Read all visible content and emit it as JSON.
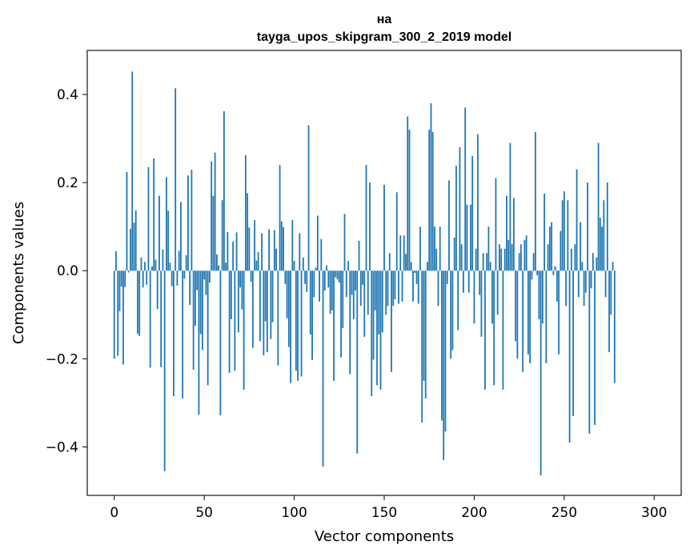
{
  "chart_data": {
    "type": "bar",
    "title_lines": [
      "на",
      "tayga_upos_skipgram_300_2_2019 model"
    ],
    "xlabel": "Vector components",
    "ylabel": "Components values",
    "xlim": [
      -15,
      315
    ],
    "ylim": [
      -0.51,
      0.5
    ],
    "xticks": [
      0,
      50,
      100,
      150,
      200,
      250,
      300
    ],
    "xtick_labels": [
      "0",
      "50",
      "100",
      "150",
      "200",
      "250",
      "300"
    ],
    "yticks": [
      0.4,
      0.2,
      0.0,
      -0.2,
      -0.4
    ],
    "ytick_labels": [
      "0.4",
      "0.2",
      "0.0",
      "−0.2",
      "−0.4"
    ],
    "grid": false,
    "bar_color": "#1f77b4",
    "x_start": 0,
    "values": [
      -0.2,
      0.044,
      -0.193,
      -0.092,
      -0.036,
      -0.213,
      -0.037,
      0.224,
      -0.004,
      0.095,
      0.452,
      0.109,
      0.137,
      -0.143,
      -0.148,
      0.03,
      -0.038,
      0.02,
      -0.032,
      0.235,
      -0.22,
      0.01,
      0.255,
      0.025,
      -0.087,
      0.17,
      -0.219,
      0.048,
      -0.455,
      0.212,
      0.136,
      0.018,
      -0.035,
      -0.285,
      0.414,
      -0.034,
      0.045,
      0.156,
      -0.29,
      -0.018,
      0.035,
      0.216,
      -0.078,
      0.229,
      -0.225,
      -0.125,
      -0.044,
      -0.327,
      -0.144,
      -0.18,
      -0.02,
      -0.055,
      -0.26,
      -0.027,
      0.248,
      0.17,
      0.268,
      0.037,
      0.012,
      -0.328,
      0.16,
      0.362,
      0.018,
      0.088,
      -0.232,
      -0.11,
      0.066,
      -0.227,
      0.087,
      -0.14,
      -0.038,
      -0.088,
      -0.27,
      0.262,
      0.176,
      0.098,
      -0.025,
      -0.175,
      0.115,
      0.023,
      0.042,
      -0.16,
      0.085,
      -0.192,
      -0.115,
      -0.185,
      0.094,
      -0.155,
      -0.117,
      0.092,
      0.05,
      -0.215,
      0.24,
      0.112,
      0.099,
      -0.03,
      -0.108,
      -0.173,
      -0.255,
      0.115,
      0.022,
      -0.227,
      -0.25,
      0.085,
      -0.24,
      0.03,
      -0.03,
      -0.048,
      0.33,
      -0.145,
      -0.203,
      -0.06,
      0.007,
      0.125,
      -0.07,
      0.072,
      -0.445,
      -0.045,
      0.012,
      -0.038,
      -0.098,
      -0.09,
      -0.25,
      -0.015,
      -0.02,
      -0.027,
      -0.197,
      -0.13,
      0.129,
      -0.06,
      0.022,
      -0.235,
      -0.055,
      -0.11,
      -0.045,
      -0.415,
      0.068,
      -0.08,
      -0.032,
      -0.15,
      0.24,
      -0.1,
      0.2,
      -0.285,
      -0.202,
      -0.09,
      -0.26,
      -0.145,
      -0.27,
      -0.14,
      0.195,
      -0.1,
      -0.08,
      0.04,
      -0.23,
      -0.08,
      -0.065,
      0.178,
      -0.075,
      0.08,
      -0.07,
      0.08,
      0.038,
      0.35,
      0.32,
      0.02,
      -0.07,
      -0.005,
      -0.03,
      -0.075,
      0.1,
      -0.345,
      -0.25,
      -0.29,
      0.02,
      0.32,
      0.38,
      0.315,
      0.1,
      0.05,
      -0.08,
      0.1,
      -0.34,
      -0.43,
      -0.365,
      -0.03,
      0.205,
      -0.2,
      -0.18,
      0.075,
      0.238,
      -0.135,
      0.28,
      0.06,
      -0.05,
      0.37,
      0.15,
      -0.05,
      0.15,
      0.26,
      -0.12,
      0.05,
      0.31,
      -0.055,
      -0.15,
      0.04,
      -0.27,
      0.04,
      0.1,
      0.02,
      -0.12,
      -0.26,
      0.21,
      -0.1,
      0.06,
      0.05,
      -0.27,
      0.05,
      0.17,
      0.07,
      0.29,
      0.06,
      0.165,
      -0.16,
      -0.2,
      0.04,
      0.06,
      -0.23,
      0.07,
      0.08,
      -0.19,
      -0.21,
      -0.02,
      0.04,
      0.315,
      -0.01,
      -0.11,
      -0.465,
      -0.12,
      0.175,
      -0.21,
      0.06,
      0.1,
      0.11,
      -0.01,
      0.01,
      -0.07,
      -0.19,
      0.09,
      0.16,
      0.18,
      -0.08,
      0.16,
      -0.39,
      0.05,
      -0.33,
      0.06,
      0.23,
      -0.06,
      0.11,
      0.02,
      -0.08,
      -0.05,
      0.2,
      -0.37,
      -0.04,
      0.04,
      -0.35,
      0.03,
      0.29,
      0.12,
      0.1,
      0.16,
      -0.06,
      0.2,
      -0.185,
      -0.1,
      0.02,
      -0.255
    ]
  }
}
